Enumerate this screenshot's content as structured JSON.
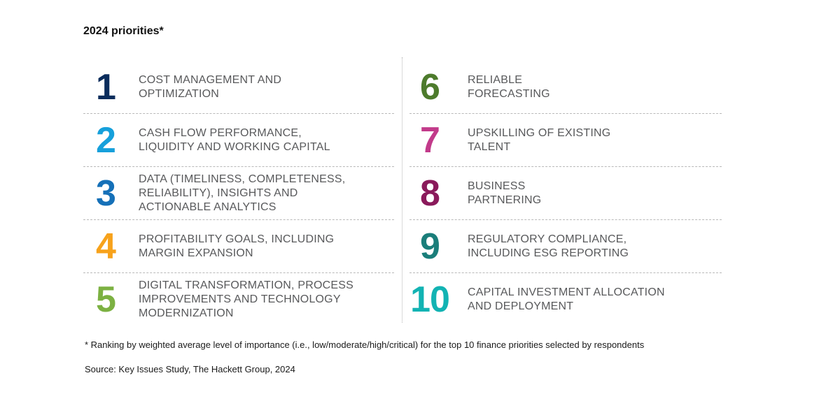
{
  "title": "2024 priorities*",
  "left_column": [
    {
      "number": "1",
      "label": "COST MANAGEMENT AND\nOPTIMIZATION",
      "color": "#0b2d5c"
    },
    {
      "number": "2",
      "label": "CASH FLOW PERFORMANCE,\nLIQUIDITY AND WORKING CAPITAL",
      "color": "#16a0db"
    },
    {
      "number": "3",
      "label": "DATA (TIMELINESS, COMPLETENESS,\nRELIABILITY), INSIGHTS AND\nACTIONABLE ANALYTICS",
      "color": "#1570b8"
    },
    {
      "number": "4",
      "label": "PROFITABILITY GOALS, INCLUDING\nMARGIN EXPANSION",
      "color": "#f7a21b"
    },
    {
      "number": "5",
      "label": "DIGITAL TRANSFORMATION, PROCESS\nIMPROVEMENTS AND TECHNOLOGY\nMODERNIZATION",
      "color": "#7cb142"
    }
  ],
  "right_column": [
    {
      "number": "6",
      "label": "RELIABLE\nFORECASTING",
      "color": "#4d7b2c"
    },
    {
      "number": "7",
      "label": "UPSKILLING OF EXISTING\nTALENT",
      "color": "#c23a8a"
    },
    {
      "number": "8",
      "label": "BUSINESS\nPARTNERING",
      "color": "#8a1a5b"
    },
    {
      "number": "9",
      "label": "REGULATORY COMPLIANCE,\nINCLUDING ESG REPORTING",
      "color": "#1a7e7a"
    },
    {
      "number": "10",
      "label": "CAPITAL INVESTMENT ALLOCATION\nAND DEPLOYMENT",
      "color": "#12b3b3"
    }
  ],
  "footnote": "* Ranking by weighted average level of importance (i.e., low/moderate/high/critical) for the top 10 finance priorities selected by respondents",
  "source": "Source: Key Issues Study, The Hackett Group, 2024"
}
